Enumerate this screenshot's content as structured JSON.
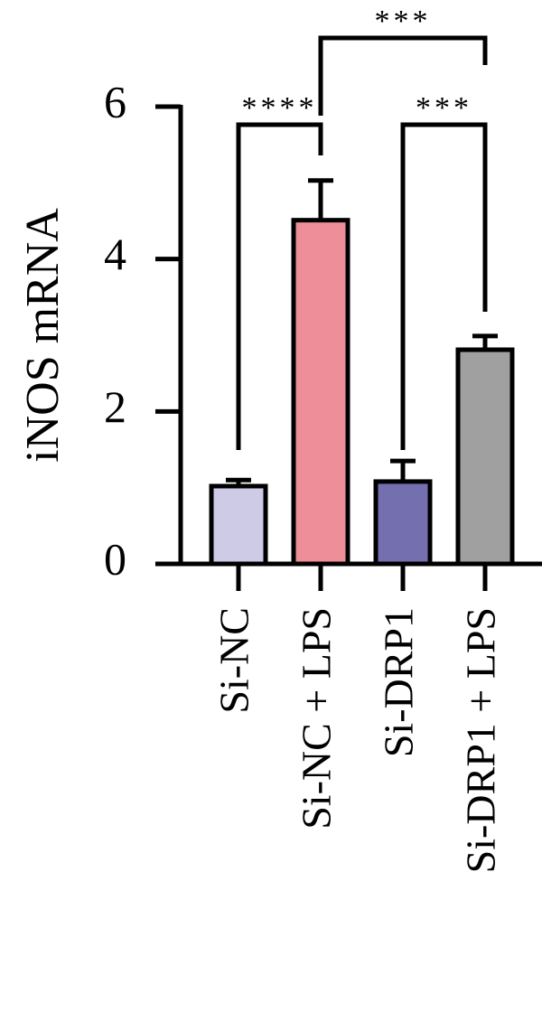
{
  "chart_data": {
    "type": "bar",
    "ylabel": "iNOS mRNA",
    "categories": [
      "Si-NC",
      "Si-NC + LPS",
      "Si-DRP1",
      "Si-DRP1 + LPS"
    ],
    "values": [
      1.02,
      4.51,
      1.08,
      2.81
    ],
    "errors": [
      0.08,
      0.52,
      0.27,
      0.18
    ],
    "colors": [
      "#cdcbe6",
      "#ee8e98",
      "#7470b0",
      "#a0a0a0"
    ],
    "ylim": [
      0,
      6
    ],
    "yticks": [
      0,
      2,
      4,
      6
    ],
    "annotations": [
      "****",
      "***",
      "***"
    ]
  }
}
